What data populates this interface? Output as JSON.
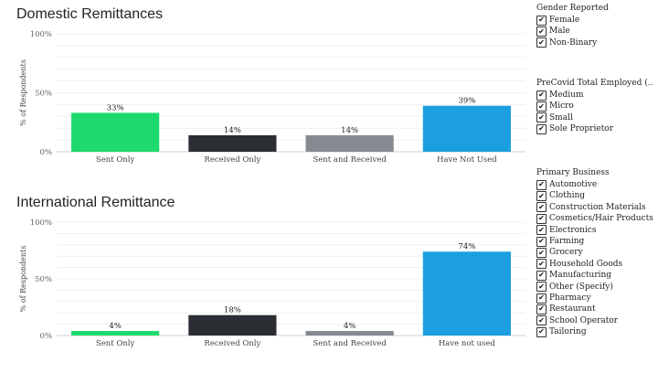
{
  "chart_data": [
    {
      "type": "bar",
      "title": "Domestic Remittances",
      "ylabel": "% of Respondents",
      "categories": [
        "Sent Only",
        "Received Only",
        "Sent and Received",
        "Have Not Used"
      ],
      "values": [
        33,
        14,
        14,
        39
      ],
      "value_labels": [
        "33%",
        "14%",
        "14%",
        "39%"
      ],
      "yticks": [
        "0%",
        "50%",
        "100%"
      ],
      "ylim": [
        0,
        100
      ],
      "grid": true,
      "bar_colors": [
        "#1ed96e",
        "#2b2e33",
        "#868a91",
        "#1b9fe0"
      ]
    },
    {
      "type": "bar",
      "title": "International Remittance",
      "ylabel": "% of Respondents",
      "categories": [
        "Sent Only",
        "Received Only",
        "Sent and Received",
        "Have not used"
      ],
      "values": [
        4,
        18,
        4,
        74
      ],
      "value_labels": [
        "4%",
        "18%",
        "4%",
        "74%"
      ],
      "yticks": [
        "0%",
        "50%",
        "100%"
      ],
      "ylim": [
        0,
        100
      ],
      "grid": true,
      "bar_colors": [
        "#1ed96e",
        "#2b2e33",
        "#868a91",
        "#1b9fe0"
      ]
    }
  ],
  "filters": [
    {
      "title": "Gender Reported",
      "items": [
        "Female",
        "Male",
        "Non-Binary"
      ]
    },
    {
      "title": "PreCovid Total Employed (..",
      "items": [
        "Medium",
        "Micro",
        "Small",
        "Sole Proprietor"
      ]
    },
    {
      "title": "Primary Business",
      "items": [
        "Automotive",
        "Clothing",
        "Construction Materials",
        "Cosmetics/Hair Products",
        "Electronics",
        "Farming",
        "Grocery",
        "Household Goods",
        "Manufacturing",
        "Other (Specify)",
        "Pharmacy",
        "Restaurant",
        "School Operator",
        "Tailoring"
      ]
    }
  ],
  "checkbox_glyph": "✔"
}
